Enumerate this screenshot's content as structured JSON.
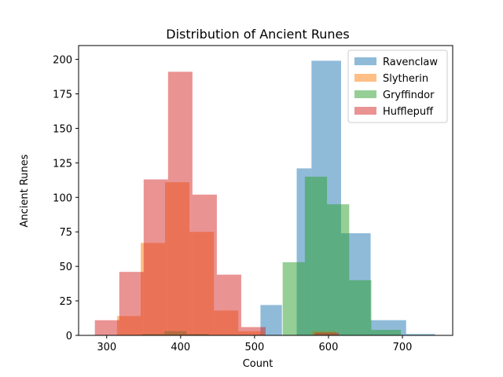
{
  "chart_data": {
    "type": "histogram",
    "title": "Distribution of Ancient Runes",
    "xlabel": "Count",
    "ylabel": "Ancient Runes",
    "xlim": [
      262,
      768
    ],
    "ylim": [
      0,
      210
    ],
    "xticks": [
      300,
      400,
      500,
      600,
      700
    ],
    "yticks": [
      0,
      25,
      50,
      75,
      100,
      125,
      150,
      175,
      200
    ],
    "grid": false,
    "legend_position": "top-right",
    "alpha": 0.5,
    "series": [
      {
        "name": "Ravenclaw",
        "color": "#1f77b4",
        "bins": [
          [
            508,
            537,
            22
          ],
          [
            537,
            557,
            0
          ],
          [
            557,
            577,
            121
          ],
          [
            577,
            617,
            199
          ],
          [
            617,
            657,
            74
          ],
          [
            657,
            705,
            11
          ],
          [
            705,
            744,
            1
          ]
        ]
      },
      {
        "name": "Slytherin",
        "color": "#ff7f0e",
        "bins": [
          [
            314,
            346,
            14
          ],
          [
            346,
            379,
            67
          ],
          [
            379,
            412,
            111
          ],
          [
            412,
            445,
            75
          ],
          [
            445,
            478,
            18
          ],
          [
            478,
            511,
            3
          ],
          [
            511,
            544,
            0
          ],
          [
            544,
            577,
            0
          ],
          [
            577,
            610,
            3
          ],
          [
            610,
            643,
            0
          ],
          [
            643,
            676,
            0
          ]
        ]
      },
      {
        "name": "Gryffindor",
        "color": "#2ca02c",
        "bins": [
          [
            348,
            378,
            1
          ],
          [
            378,
            408,
            3
          ],
          [
            408,
            438,
            1
          ],
          [
            438,
            468,
            0
          ],
          [
            468,
            498,
            0
          ],
          [
            498,
            528,
            0
          ],
          [
            528,
            538,
            0
          ],
          [
            538,
            568,
            53
          ],
          [
            568,
            598,
            115
          ],
          [
            598,
            628,
            95
          ],
          [
            628,
            658,
            40
          ],
          [
            658,
            698,
            4
          ]
        ]
      },
      {
        "name": "Hufflepuff",
        "color": "#d62728",
        "bins": [
          [
            284,
            317,
            11
          ],
          [
            317,
            350,
            46
          ],
          [
            350,
            383,
            113
          ],
          [
            383,
            416,
            191
          ],
          [
            416,
            449,
            102
          ],
          [
            449,
            482,
            44
          ],
          [
            482,
            515,
            6
          ],
          [
            515,
            548,
            0
          ],
          [
            548,
            581,
            0
          ],
          [
            581,
            614,
            2
          ]
        ]
      }
    ]
  }
}
